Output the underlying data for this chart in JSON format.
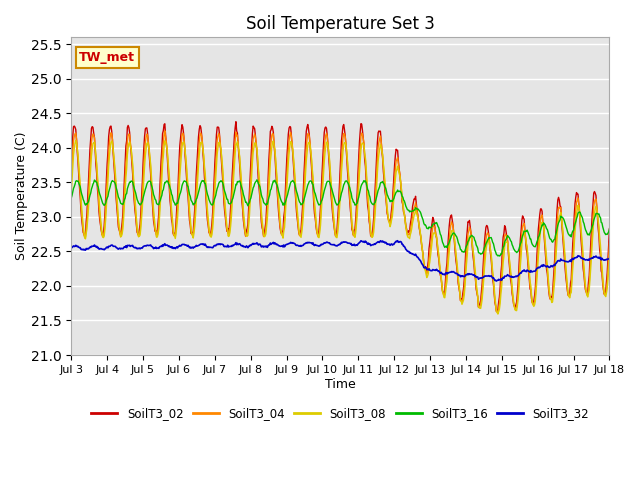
{
  "title": "Soil Temperature Set 3",
  "xlabel": "Time",
  "ylabel": "Soil Temperature (C)",
  "ylim": [
    21.0,
    25.6
  ],
  "yticks": [
    21.0,
    21.5,
    22.0,
    22.5,
    23.0,
    23.5,
    24.0,
    24.5,
    25.0,
    25.5
  ],
  "background_color": "#e5e5e5",
  "series_colors": {
    "SoilT3_02": "#cc0000",
    "SoilT3_04": "#ff8800",
    "SoilT3_08": "#ddcc00",
    "SoilT3_16": "#00bb00",
    "SoilT3_32": "#0000cc"
  },
  "annotation_text": "TW_met",
  "annotation_bg": "#ffffcc",
  "annotation_border": "#cc8800",
  "x_tick_labels": [
    "Jul 3",
    "Jul 4",
    "Jul 5",
    "Jul 6",
    "Jul 7",
    "Jul 8",
    "Jul 9",
    "Jul 10",
    "Jul 11",
    "Jul 12",
    "Jul 13",
    "Jul 14",
    "Jul 15",
    "Jul 16",
    "Jul 17",
    "Jul 18"
  ],
  "n_days": 15,
  "points_per_day": 48
}
